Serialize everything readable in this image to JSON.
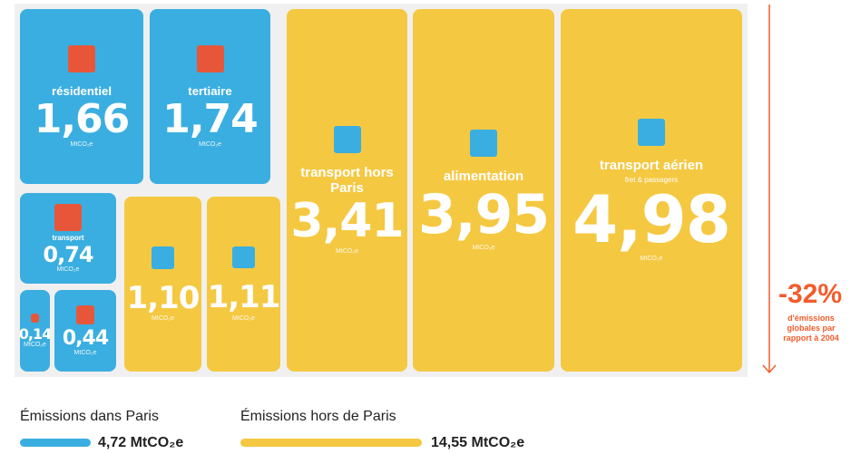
{
  "tiles": [
    {
      "label": "résidentiel",
      "value": "1,66",
      "unit": "MtCO₂e"
    },
    {
      "label": "tertiaire",
      "value": "1,74",
      "unit": "MtCO₂e"
    },
    {
      "label": "transport",
      "value": "0,74",
      "unit": "MtCO₂e"
    },
    {
      "value": "0,14",
      "unit": "MtCO₂e"
    },
    {
      "value": "0,44",
      "unit": "MtCO₂e"
    },
    {
      "value": "1,10",
      "unit": "MtCO₂e"
    },
    {
      "value": "1,11",
      "unit": "MtCO₂e"
    },
    {
      "label": "transport hors Paris",
      "value": "3,41",
      "unit": "MtCO₂e"
    },
    {
      "label": "alimentation",
      "value": "3,95",
      "unit": "MtCO₂e"
    },
    {
      "label": "transport aérien",
      "sublabel": "fret & passagers",
      "value": "4,98",
      "unit": "MtCO₂e"
    }
  ],
  "reduction": {
    "value": "-32%",
    "text": "d'émissions globales par rapport à 2004"
  },
  "legend": [
    {
      "name": "Émissions dans Paris",
      "total": "4,72 MtCO₂e"
    },
    {
      "name": "Émissions hors de Paris",
      "total": "14,55 MtCO₂e"
    }
  ]
}
